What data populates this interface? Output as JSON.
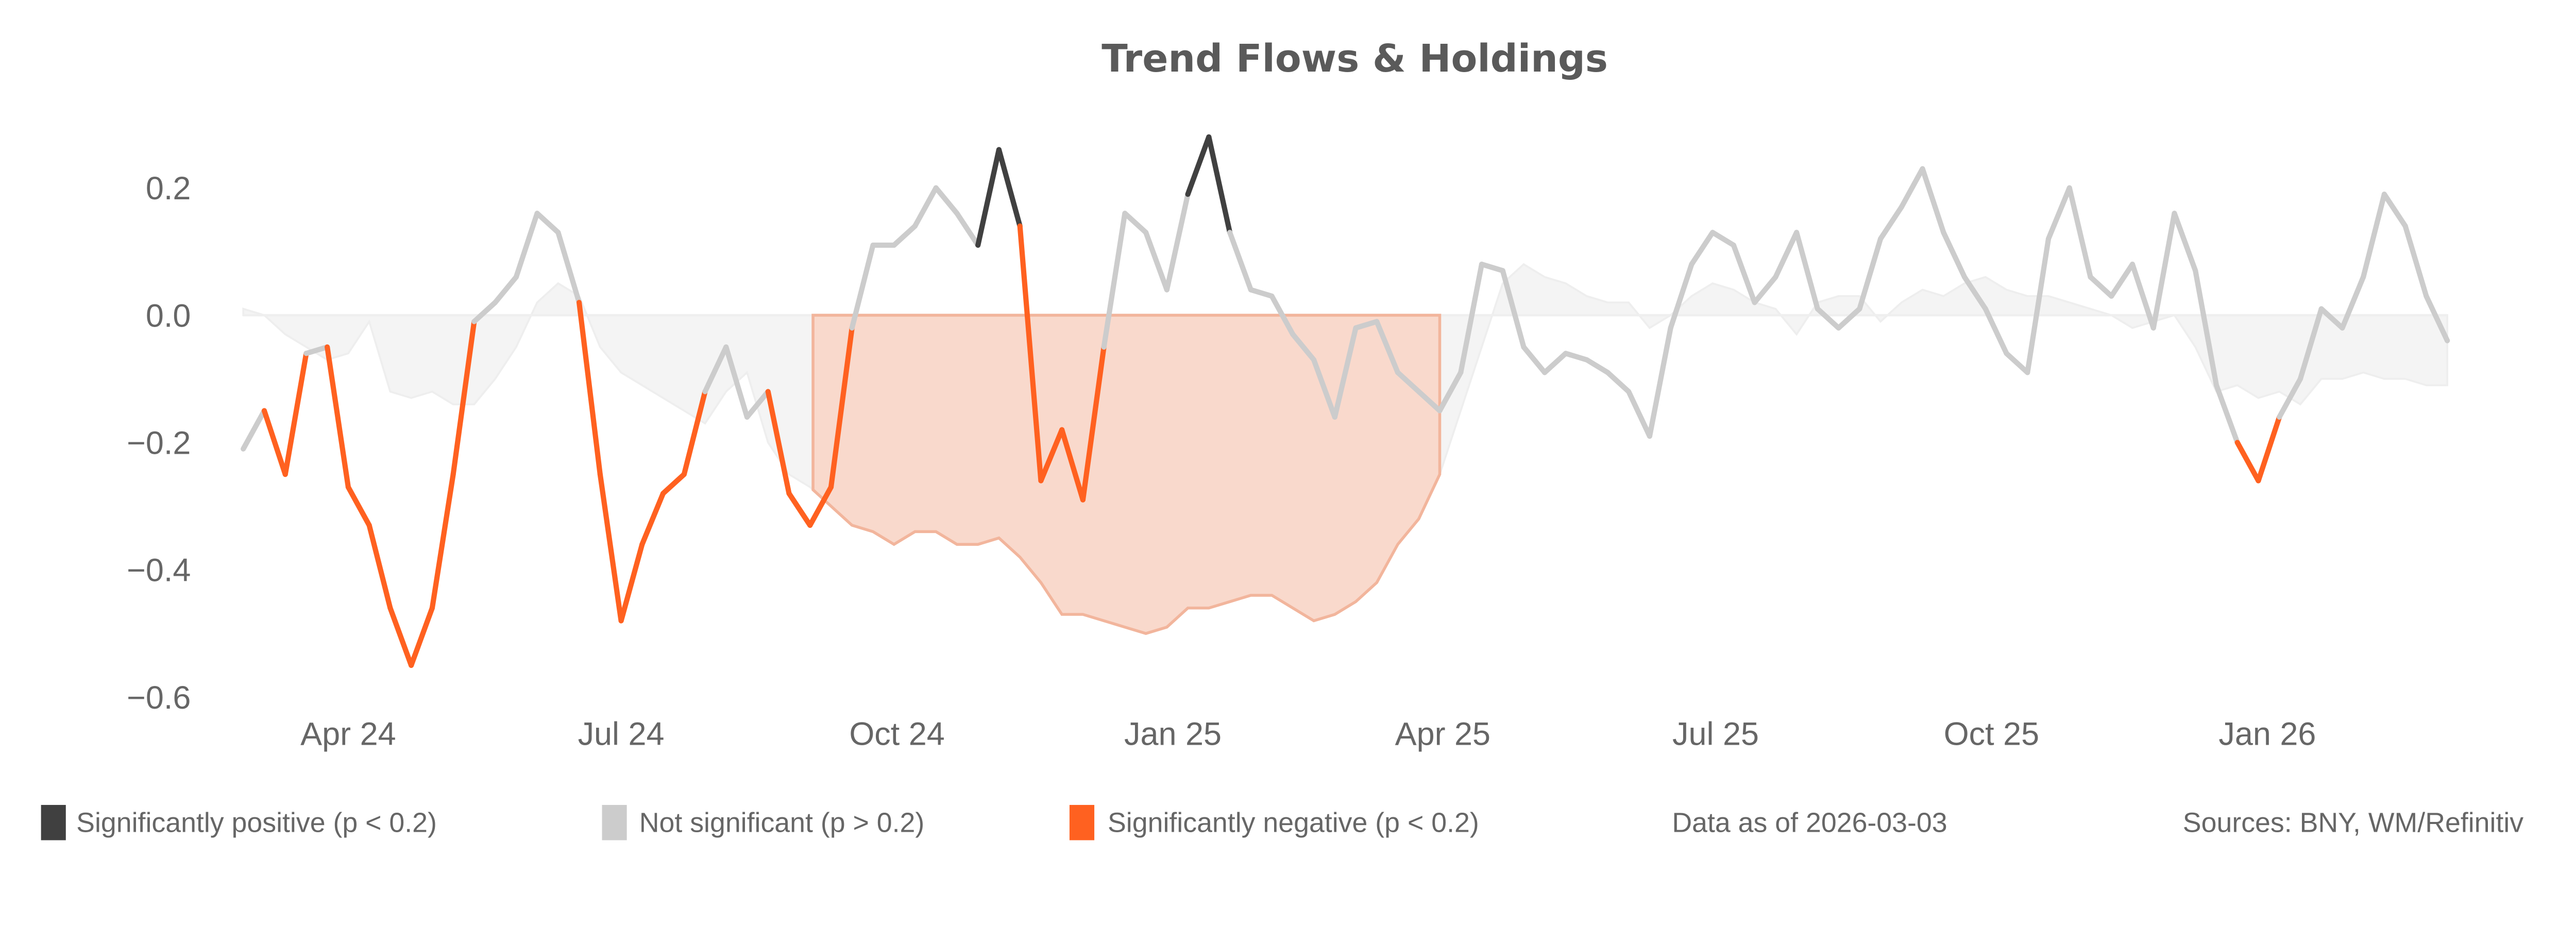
{
  "chart_data": {
    "type": "line",
    "title": "Trend Flows & Holdings",
    "xlabel": "",
    "ylabel": "",
    "ylim": [
      -0.62,
      0.31
    ],
    "yticks": [
      0.2,
      0.0,
      -0.2,
      -0.4,
      -0.6
    ],
    "ytick_labels": [
      "0.2",
      "0.0",
      "−0.2",
      "−0.4",
      "−0.6"
    ],
    "xticks": [
      "2024-04-01",
      "2024-07-01",
      "2024-10-01",
      "2025-01-01",
      "2025-04-01",
      "2025-07-01",
      "2025-10-01",
      "2026-01-01"
    ],
    "xtick_labels": [
      "Apr 24",
      "Jul 24",
      "Oct 24",
      "Jan 25",
      "Apr 25",
      "Jul 25",
      "Oct 25",
      "Jan 26"
    ],
    "grid": false,
    "legend_placement": "bottom",
    "colors": {
      "positive": "#404040",
      "not_significant": "#cccccc",
      "negative": "#ff6120",
      "area": "#f4f4f4",
      "highlight_fill": "#f9d9cc",
      "highlight_stroke": "#f2b59c",
      "text": "#666666"
    },
    "legend": [
      {
        "label": "Significantly positive (p < 0.2)",
        "key": "pos"
      },
      {
        "label": "Not significant (p > 0.2)",
        "key": "ns"
      },
      {
        "label": "Significantly negative (p < 0.2)",
        "key": "neg"
      }
    ],
    "note": "Data as of 2026-03-03",
    "sources": "Sources:  BNY, WM/Refinitiv",
    "x_start": "2024-02-26",
    "x_step_days": 7,
    "line_values": [
      -0.21,
      -0.15,
      -0.25,
      -0.06,
      -0.05,
      -0.27,
      -0.33,
      -0.46,
      -0.55,
      -0.46,
      -0.25,
      -0.01,
      0.02,
      0.06,
      0.16,
      0.13,
      0.02,
      -0.25,
      -0.48,
      -0.36,
      -0.28,
      -0.25,
      -0.12,
      -0.05,
      -0.16,
      -0.12,
      -0.28,
      -0.33,
      -0.27,
      -0.02,
      0.11,
      0.11,
      0.14,
      0.2,
      0.16,
      0.11,
      0.26,
      0.14,
      -0.26,
      -0.18,
      -0.29,
      -0.05,
      0.16,
      0.13,
      0.04,
      0.19,
      0.28,
      0.13,
      0.04,
      0.03,
      -0.03,
      -0.07,
      -0.16,
      -0.02,
      -0.01,
      -0.09,
      -0.12,
      -0.15,
      -0.09,
      0.08,
      0.07,
      -0.05,
      -0.09,
      -0.06,
      -0.07,
      -0.09,
      -0.12,
      -0.19,
      -0.02,
      0.08,
      0.13,
      0.11,
      0.02,
      0.06,
      0.13,
      0.01,
      -0.02,
      0.01,
      0.12,
      0.17,
      0.23,
      0.13,
      0.06,
      0.01,
      -0.06,
      -0.09,
      0.12,
      0.2,
      0.06,
      0.03,
      0.08,
      -0.02,
      0.16,
      0.07,
      -0.11,
      -0.2,
      -0.26,
      -0.16,
      -0.1,
      0.01,
      -0.02,
      0.06,
      0.19,
      0.14,
      0.03,
      -0.04
    ],
    "line_significance": [
      "ns",
      "ns",
      "neg",
      "ns",
      "ns",
      "neg",
      "neg",
      "neg",
      "neg",
      "neg",
      "neg",
      "ns",
      "ns",
      "ns",
      "ns",
      "ns",
      "ns",
      "neg",
      "neg",
      "neg",
      "neg",
      "neg",
      "ns",
      "ns",
      "ns",
      "ns",
      "neg",
      "neg",
      "neg",
      "ns",
      "ns",
      "ns",
      "ns",
      "ns",
      "ns",
      "ns",
      "pos",
      "ns",
      "neg",
      "ns",
      "neg",
      "ns",
      "ns",
      "ns",
      "ns",
      "ns",
      "pos",
      "ns",
      "ns",
      "ns",
      "ns",
      "ns",
      "ns",
      "ns",
      "ns",
      "ns",
      "ns",
      "ns",
      "ns",
      "ns",
      "ns",
      "ns",
      "ns",
      "ns",
      "ns",
      "ns",
      "ns",
      "ns",
      "ns",
      "ns",
      "ns",
      "ns",
      "ns",
      "ns",
      "ns",
      "ns",
      "ns",
      "ns",
      "ns",
      "ns",
      "ns",
      "ns",
      "ns",
      "ns",
      "ns",
      "ns",
      "ns",
      "ns",
      "ns",
      "ns",
      "ns",
      "ns",
      "ns",
      "ns",
      "ns",
      "ns",
      "neg",
      "ns",
      "ns",
      "ns",
      "ns",
      "ns",
      "ns",
      "ns",
      "ns",
      "ns"
    ],
    "area_values": [
      0.01,
      0.0,
      -0.03,
      -0.05,
      -0.07,
      -0.06,
      -0.01,
      -0.12,
      -0.13,
      -0.12,
      -0.14,
      -0.14,
      -0.1,
      -0.05,
      0.02,
      0.05,
      0.03,
      -0.05,
      -0.09,
      -0.11,
      -0.13,
      -0.15,
      -0.17,
      -0.12,
      -0.09,
      -0.2,
      -0.25,
      -0.27,
      -0.3,
      -0.33,
      -0.34,
      -0.36,
      -0.34,
      -0.34,
      -0.36,
      -0.36,
      -0.35,
      -0.38,
      -0.42,
      -0.47,
      -0.47,
      -0.48,
      -0.49,
      -0.5,
      -0.49,
      -0.46,
      -0.46,
      -0.45,
      -0.44,
      -0.44,
      -0.46,
      -0.48,
      -0.47,
      -0.45,
      -0.42,
      -0.36,
      -0.32,
      -0.25,
      -0.15,
      -0.05,
      0.05,
      0.08,
      0.06,
      0.05,
      0.03,
      0.02,
      0.02,
      -0.02,
      0.0,
      0.03,
      0.05,
      0.04,
      0.02,
      0.01,
      -0.03,
      0.02,
      0.03,
      0.03,
      -0.01,
      0.02,
      0.04,
      0.03,
      0.05,
      0.06,
      0.04,
      0.03,
      0.03,
      0.02,
      0.01,
      0.0,
      -0.02,
      -0.01,
      0.0,
      -0.05,
      -0.12,
      -0.11,
      -0.13,
      -0.12,
      -0.14,
      -0.1,
      -0.1,
      -0.09,
      -0.1,
      -0.1,
      -0.11,
      -0.11
    ],
    "highlight_range": [
      "2024-09-03",
      "2025-03-31"
    ]
  }
}
